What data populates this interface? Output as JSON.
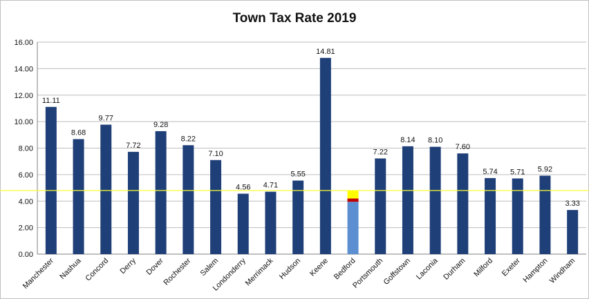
{
  "chart_data": {
    "type": "bar",
    "title": "Town Tax Rate 2019",
    "xlabel": "",
    "ylabel": "",
    "ylim": [
      0,
      16
    ],
    "yticks": [
      "0.00",
      "2.00",
      "4.00",
      "6.00",
      "8.00",
      "10.00",
      "12.00",
      "14.00",
      "16.00"
    ],
    "grid": "horizontal",
    "categories": [
      "Manchester",
      "Nashua",
      "Concord",
      "Derry",
      "Dover",
      "Rochester",
      "Salem",
      "Londonderry",
      "Merrimack",
      "Hudson",
      "Keene",
      "Bedford",
      "Portsmouth",
      "Goffstown",
      "Laconia",
      "Durham",
      "Milford",
      "Exeter",
      "Hampton",
      "Windham"
    ],
    "values": [
      11.11,
      8.68,
      9.77,
      7.72,
      9.28,
      8.22,
      7.1,
      4.56,
      4.71,
      5.55,
      14.81,
      null,
      7.22,
      8.14,
      8.1,
      7.6,
      5.74,
      5.71,
      5.92,
      3.33
    ],
    "value_labels": [
      "11.11",
      "8.68",
      "9.77",
      "7.72",
      "9.28",
      "8.22",
      "7.10",
      "4.56",
      "4.71",
      "5.55",
      "14.81",
      "",
      "7.22",
      "8.14",
      "8.10",
      "7.60",
      "5.74",
      "5.71",
      "5.92",
      "3.33"
    ],
    "highlight": {
      "category": "Bedford",
      "segments": [
        {
          "from": 0,
          "to": 3.95,
          "color": "#5b8fd1"
        },
        {
          "from": 3.95,
          "to": 4.2,
          "color": "#c00000"
        },
        {
          "from": 4.2,
          "to": 4.8,
          "color": "#ffff00"
        }
      ]
    },
    "reference_line": {
      "value": 4.8,
      "color": "#ffff33"
    },
    "bar_color": "#1f3f78"
  }
}
